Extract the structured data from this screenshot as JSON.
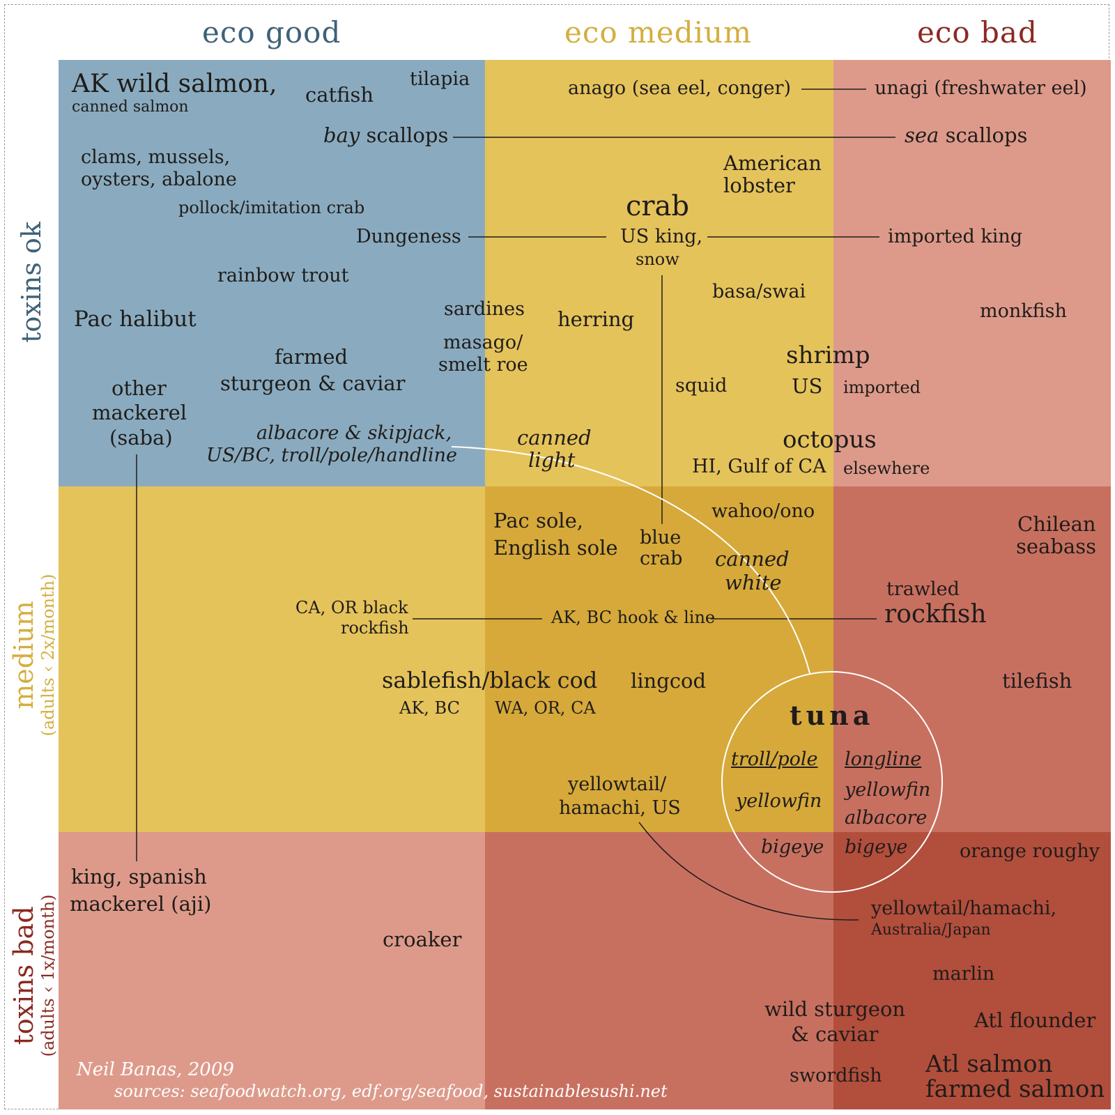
{
  "columns": {
    "good": "eco good",
    "medium": "eco medium",
    "bad": "eco bad"
  },
  "rows": {
    "ok": "toxins ok",
    "medium": "medium",
    "medium_sub": "(adults ‹ 2x/month)",
    "bad": "toxins bad",
    "bad_sub": "(adults ‹ 1x/month)"
  },
  "colors": {
    "blue": "#8aabbf",
    "yellow": "#e5c35b",
    "yellow_dark": "#d6a93a",
    "pink": "#dd9a8a",
    "red": "#c87060",
    "red_dark": "#b24e3c",
    "col_good": "#3d6276",
    "col_medium": "#d4ae3e",
    "col_bad": "#8a2a22"
  },
  "labels": {
    "ak_salmon": "AK wild salmon,",
    "canned_salmon": "canned salmon",
    "catfish": "catfish",
    "tilapia": "tilapia",
    "bay": "bay",
    "bay_scallops": "scallops",
    "clams": "clams, mussels,",
    "oysters": "oysters, abalone",
    "pollock": "pollock/imitation crab",
    "dungeness": "Dungeness",
    "rainbow_trout": "rainbow trout",
    "pac_halibut": "Pac halibut",
    "farmed": "farmed",
    "sturgeon_caviar": "sturgeon & caviar",
    "other_mackerel": "other",
    "other_mackerel2": "mackerel",
    "saba": "(saba)",
    "albacore_skipjack": "albacore & skipjack,",
    "us_bc_troll": "US/BC, troll/pole/handline",
    "anago": "anago (sea eel, conger)",
    "american": "American",
    "lobster": "lobster",
    "crab": "crab",
    "us_king": "US king,",
    "snow": "snow",
    "basa": "basa/swai",
    "sardines": "sardines",
    "herring": "herring",
    "masago": "masago/",
    "smelt_roe": "smelt roe",
    "squid": "squid",
    "shrimp": "shrimp",
    "shrimp_us": "US",
    "shrimp_imported": "imported",
    "canned": "canned",
    "light": "light",
    "octopus": "octopus",
    "octopus_hi": "HI, Gulf of CA",
    "octopus_else": "elsewhere",
    "unagi": "unagi (freshwater eel)",
    "sea": "sea",
    "sea_scallops": "scallops",
    "imported_king": "imported king",
    "monkfish": "monkfish",
    "pac_sole": "Pac sole,",
    "english_sole": "English sole",
    "blue": "blue",
    "blue_crab": "crab",
    "wahoo": "wahoo/ono",
    "canned_white1": "canned",
    "canned_white2": "white",
    "ca_or": "CA, OR black",
    "rockfish_small": "rockfish",
    "ak_bc_hook": "AK, BC hook & line",
    "sablefish": "sablefish/black cod",
    "ak_bc": "AK, BC",
    "wa_or_ca": "WA, OR, CA",
    "lingcod": "lingcod",
    "yellowtail_us1": "yellowtail/",
    "yellowtail_us2": "hamachi, US",
    "chilean": "Chilean",
    "seabass": "seabass",
    "trawled": "trawled",
    "rockfish": "rockfish",
    "tilefish": "tilefish",
    "tuna": "tuna",
    "troll_pole": "troll/pole",
    "longline": "longline",
    "yellowfin_a": "yellowfin",
    "yellowfin_b": "yellowfin",
    "albacore": "albacore",
    "bigeye_a": "bigeye",
    "bigeye_b": "bigeye",
    "king_spanish": "king, spanish",
    "mackerel_aji": "mackerel (aji)",
    "croaker": "croaker",
    "orange_roughy": "orange roughy",
    "yellowtail_aus": "yellowtail/hamachi,",
    "australia_japan": "Australia/Japan",
    "marlin": "marlin",
    "wild_sturgeon": "wild sturgeon",
    "caviar": "& caviar",
    "atl_flounder": "Atl flounder",
    "swordfish": "swordfish",
    "atl_salmon": "Atl salmon",
    "farmed_salmon": "farmed salmon"
  },
  "credit": {
    "author": "Neil Banas, 2009",
    "sources": "sources: seafoodwatch.org, edf.org/seafood, sustainablesushi.net"
  }
}
